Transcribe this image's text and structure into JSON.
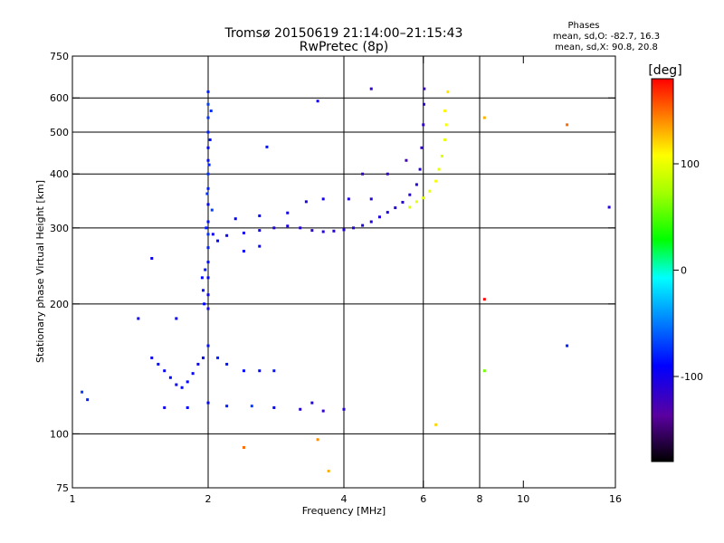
{
  "header": {
    "title": "Tromsø 20150619 21:14:00–21:15:43",
    "subtitle": "RwPretec (8p)",
    "stats_title": "Phases",
    "stats_o": "mean, sd,O: -82.7, 16.3",
    "stats_x": "mean, sd,X:  90.8, 20.8"
  },
  "chart_data": {
    "type": "scatter",
    "xlabel": "Frequency [MHz]",
    "ylabel": "Stationary phase Virtual Height [km]",
    "x_scale": "log",
    "y_scale": "log",
    "xlim": [
      1,
      16
    ],
    "ylim": [
      75,
      750
    ],
    "x_ticks": [
      1,
      2,
      4,
      6,
      8,
      10,
      16
    ],
    "y_ticks": [
      75,
      100,
      200,
      300,
      400,
      500,
      600,
      750
    ],
    "x_gridlines": [
      2,
      4,
      6,
      8
    ],
    "y_gridlines": [
      100,
      200,
      300,
      400,
      500,
      600
    ],
    "grid": true,
    "colorbar": {
      "label": "[deg]",
      "range": [
        -180,
        180
      ],
      "ticks": [
        {
          "value": 100,
          "label": "100"
        },
        {
          "value": 0,
          "label": "0"
        },
        {
          "value": -100,
          "label": "-100"
        }
      ]
    },
    "series": [
      {
        "points": [
          [
            2.0,
            195,
            -100
          ],
          [
            2.0,
            210,
            -95
          ],
          [
            2.0,
            230,
            -90
          ],
          [
            2.0,
            250,
            -85
          ],
          [
            2.0,
            270,
            -80
          ],
          [
            2.0,
            290,
            -75
          ],
          [
            2.0,
            310,
            -85
          ],
          [
            2.0,
            340,
            -90
          ],
          [
            2.0,
            370,
            -80
          ],
          [
            2.0,
            400,
            -75
          ],
          [
            2.0,
            430,
            -85
          ],
          [
            2.0,
            460,
            -90
          ],
          [
            2.0,
            500,
            -80
          ],
          [
            2.0,
            540,
            -75
          ],
          [
            2.0,
            580,
            -70
          ],
          [
            2.0,
            620,
            -80
          ],
          [
            1.96,
            200,
            -90
          ],
          [
            1.97,
            240,
            -85
          ],
          [
            1.98,
            300,
            -80
          ],
          [
            1.99,
            360,
            -75
          ],
          [
            2.01,
            420,
            -80
          ],
          [
            2.02,
            480,
            -85
          ],
          [
            2.03,
            560,
            -75
          ],
          [
            1.95,
            215,
            -85
          ],
          [
            2.04,
            330,
            -70
          ],
          [
            1.94,
            230,
            -88
          ],
          [
            2.05,
            290,
            -95
          ],
          [
            2.2,
            288,
            -95
          ],
          [
            2.4,
            292,
            -100
          ],
          [
            2.6,
            296,
            -100
          ],
          [
            2.8,
            300,
            -105
          ],
          [
            3.0,
            303,
            -105
          ],
          [
            3.2,
            300,
            -110
          ],
          [
            3.4,
            296,
            -115
          ],
          [
            3.6,
            294,
            -110
          ],
          [
            3.8,
            295,
            -110
          ],
          [
            4.0,
            297,
            -105
          ],
          [
            4.2,
            300,
            -105
          ],
          [
            4.4,
            304,
            -105
          ],
          [
            4.6,
            310,
            -105
          ],
          [
            4.8,
            318,
            -105
          ],
          [
            5.0,
            326,
            -105
          ],
          [
            5.2,
            334,
            -110
          ],
          [
            5.4,
            344,
            -110
          ],
          [
            5.6,
            358,
            -110
          ],
          [
            5.8,
            378,
            -110
          ],
          [
            5.9,
            410,
            -110
          ],
          [
            5.95,
            460,
            -115
          ],
          [
            6.0,
            520,
            -115
          ],
          [
            6.02,
            580,
            -115
          ],
          [
            6.03,
            630,
            -120
          ],
          [
            2.3,
            315,
            -90
          ],
          [
            2.6,
            320,
            -95
          ],
          [
            3.0,
            325,
            -100
          ],
          [
            3.3,
            345,
            -105
          ],
          [
            3.6,
            350,
            -100
          ],
          [
            4.1,
            350,
            -105
          ],
          [
            4.6,
            350,
            -110
          ],
          [
            4.4,
            400,
            -115
          ],
          [
            5.0,
            400,
            -115
          ],
          [
            5.5,
            430,
            -125
          ],
          [
            2.4,
            265,
            -95
          ],
          [
            2.1,
            280,
            -90
          ],
          [
            2.6,
            272,
            -92
          ],
          [
            5.6,
            335,
            95
          ],
          [
            5.8,
            345,
            100
          ],
          [
            6.0,
            352,
            95
          ],
          [
            6.2,
            365,
            100
          ],
          [
            6.4,
            385,
            105
          ],
          [
            6.5,
            410,
            100
          ],
          [
            6.6,
            440,
            95
          ],
          [
            6.7,
            480,
            100
          ],
          [
            6.75,
            520,
            105
          ],
          [
            6.7,
            560,
            110
          ],
          [
            6.8,
            620,
            115
          ],
          [
            1.5,
            150,
            -95
          ],
          [
            1.55,
            145,
            -90
          ],
          [
            1.6,
            140,
            -92
          ],
          [
            1.65,
            135,
            -90
          ],
          [
            1.7,
            130,
            -95
          ],
          [
            1.75,
            128,
            -88
          ],
          [
            1.8,
            132,
            -90
          ],
          [
            1.85,
            138,
            -92
          ],
          [
            1.9,
            145,
            -95
          ],
          [
            1.95,
            150,
            -90
          ],
          [
            2.0,
            160,
            -85
          ],
          [
            2.1,
            150,
            -80
          ],
          [
            2.2,
            145,
            -85
          ],
          [
            2.4,
            140,
            -88
          ],
          [
            2.6,
            140,
            -90
          ],
          [
            2.8,
            140,
            -85
          ],
          [
            1.6,
            115,
            -95
          ],
          [
            1.8,
            115,
            -90
          ],
          [
            2.0,
            118,
            -90
          ],
          [
            2.2,
            116,
            -80
          ],
          [
            2.5,
            116,
            -70
          ],
          [
            2.8,
            115,
            -90
          ],
          [
            3.2,
            114,
            -110
          ],
          [
            3.6,
            113,
            -115
          ],
          [
            4.0,
            114,
            -110
          ],
          [
            3.4,
            118,
            -105
          ],
          [
            1.05,
            125,
            -70
          ],
          [
            1.08,
            120,
            -80
          ],
          [
            1.4,
            185,
            -95
          ],
          [
            1.7,
            185,
            -92
          ],
          [
            1.5,
            255,
            -95
          ],
          [
            2.7,
            462,
            -85
          ],
          [
            3.5,
            590,
            -100
          ],
          [
            4.6,
            630,
            -115
          ],
          [
            8.2,
            540,
            130
          ],
          [
            12.5,
            520,
            150
          ],
          [
            15.5,
            335,
            -110
          ],
          [
            8.2,
            140,
            60
          ],
          [
            12.5,
            160,
            -80
          ],
          [
            8.2,
            205,
            180
          ],
          [
            2.4,
            93,
            150
          ],
          [
            3.5,
            97,
            140
          ],
          [
            3.7,
            82,
            130
          ],
          [
            6.4,
            105,
            120
          ]
        ]
      }
    ]
  }
}
